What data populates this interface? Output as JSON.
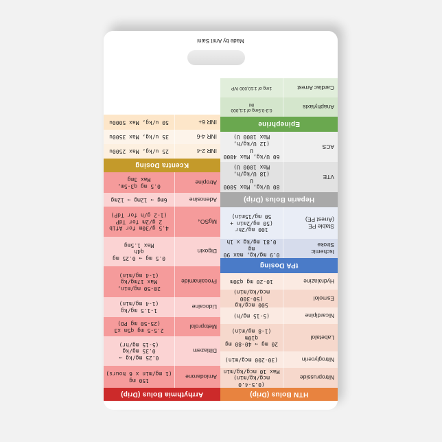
{
  "footer": {
    "credit": "Made by Amit Saini"
  },
  "left_sections": [
    {
      "title": "HTN Bolus (Drip)",
      "color": "#e8833f",
      "rows": [
        {
          "name": "Nitroprusside",
          "value": "(0.5-4.0 mcg/kg/min)\nMax 10 mcg/kg/min",
          "bg": "#f6d8cc"
        },
        {
          "name": "Nitroglycerin",
          "value": "(30-200 mcg/min)",
          "bg": "#fbeae2"
        },
        {
          "name": "Labetalol",
          "value": "20 mg → 40-80 mg\nq10m\n(1-8 mg/min)",
          "bg": "#f6d8cc"
        },
        {
          "name": "Nicardipine",
          "value": "(5-15 mg/h)",
          "bg": "#fbeae2"
        },
        {
          "name": "Esmolol",
          "value": "500 mcg/kg\n(50-300 mcg/kg/min)",
          "bg": "#f6d8cc"
        },
        {
          "name": "Hydralazine",
          "value": "10-20 mg q30m",
          "bg": "#fbeae2"
        }
      ]
    },
    {
      "title": "tPA Dosing",
      "color": "#4a7bc8",
      "rows": [
        {
          "name": "Ischemic\nStroke",
          "value": "0.9 mg/kg, max 90 mg\n0.81 mg/kg x 1h",
          "bg": "#d6dcec"
        },
        {
          "name": "Stable PE\n(Arrest PE)",
          "value": "100 mg/2hr\n(50 mg/2min +\n50 mg/15min)",
          "bg": "#e9edf6"
        }
      ]
    },
    {
      "title": "Heparin Bolus (Drip)",
      "color": "#a9a9a9",
      "rows": [
        {
          "name": "VTE",
          "value": "80 U/kg, Max 5000 U\n(18 U/kg/h,\nMax 1000 U)",
          "bg": "#e2e2e2"
        },
        {
          "name": "ACS",
          "value": "60 U/kg, Max 4000 U\n(12 U/kg/h,\nMax 1000 U)",
          "bg": "#efefef"
        }
      ]
    },
    {
      "title": "Epinephrine",
      "color": "#6aa84f",
      "rows": [
        {
          "name": "Anaphylaxis",
          "value": "0.3-0.5mg of 1:1,000\nIM",
          "bg": "#d4e6cc",
          "small": true
        },
        {
          "name": "Cardiac Arrest",
          "value": "1mg of 1:10,000 IVP",
          "bg": "#e1eedb",
          "small": true
        }
      ]
    }
  ],
  "right_sections": [
    {
      "title": "Arrhythmia Bolus (Drip)",
      "color": "#cc2a2a",
      "rows": [
        {
          "name": "Amiodarone",
          "value": "150 mg\n(1 mg/min x 6 hours)",
          "bg": "#f59b9b"
        },
        {
          "name": "Diltiazem",
          "value": "0.25 mg/kg →\n0.35 mg/kg\n(5-15 mg/hr)",
          "bg": "#fbd3d3"
        },
        {
          "name": "Metoprolol",
          "value": "2.5-5 mg q5m x3\n(25-50 mg PO)",
          "bg": "#f59b9b"
        },
        {
          "name": "Lidocaine",
          "value": "1-1.5 mg/kg\n(1-4 mg/min)",
          "bg": "#fbd3d3"
        },
        {
          "name": "Procainamide",
          "value": "20-50 mg/min,\nMax 17mg/kg\n(1-4 mg/min)",
          "bg": "#f59b9b"
        },
        {
          "name": "Digoxin",
          "value": "0.5 mg → 0.25 mg\nq4h\nMax 1.5mg",
          "bg": "#fbd3d3"
        },
        {
          "name": "MgSO₄",
          "value": "4.5 g/30m for Afib\n2 g/2m for TdP\n(1-2 g/h for TdP)",
          "bg": "#f59b9b"
        },
        {
          "name": "Adenosine",
          "value": "6mg → 12mg → 12mg",
          "bg": "#fbd3d3"
        },
        {
          "name": "Atropine",
          "value": "0.5 mg q3-5m,\nMax 3mg",
          "bg": "#f59b9b"
        }
      ]
    },
    {
      "title": "Kcentra Dosing",
      "color": "#c49a2a",
      "rows": [
        {
          "name": "INR 2-4",
          "value": "25 u/kg, Max 2500u",
          "bg": "#fdf0e0"
        },
        {
          "name": "INR 4-6",
          "value": "35 u/kg, Max 3500u",
          "bg": "#fdf4ea"
        },
        {
          "name": "INR 6+",
          "value": "50 u/kg, Max 5000u",
          "bg": "#fde6c9"
        }
      ]
    }
  ]
}
